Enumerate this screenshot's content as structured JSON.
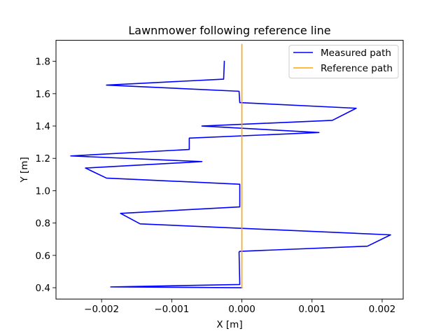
{
  "chart_data": {
    "type": "line",
    "title": "Lawnmower following reference line",
    "xlabel": "X [m]",
    "ylabel": "Y [m]",
    "xlim": [
      -0.00265,
      0.0023
    ],
    "ylim": [
      0.33,
      1.93
    ],
    "x_ticks": [
      {
        "value": -0.002,
        "label": "−0.002"
      },
      {
        "value": -0.001,
        "label": "−0.001"
      },
      {
        "value": 0.0,
        "label": "0.000"
      },
      {
        "value": 0.001,
        "label": "0.001"
      },
      {
        "value": 0.002,
        "label": "0.002"
      }
    ],
    "y_ticks": [
      {
        "value": 0.4,
        "label": "0.4"
      },
      {
        "value": 0.6,
        "label": "0.6"
      },
      {
        "value": 0.8,
        "label": "0.8"
      },
      {
        "value": 1.0,
        "label": "1.0"
      },
      {
        "value": 1.2,
        "label": "1.2"
      },
      {
        "value": 1.4,
        "label": "1.4"
      },
      {
        "value": 1.6,
        "label": "1.6"
      },
      {
        "value": 1.8,
        "label": "1.8"
      }
    ],
    "grid": false,
    "legend_position": "top-right",
    "series": [
      {
        "name": "Measured path",
        "color": "#0000ff",
        "x": [
          0.0,
          -0.00187,
          -3e-05,
          -4e-05,
          -3e-05,
          0.00179,
          0.00212,
          -0.00145,
          -0.00173,
          -3e-05,
          -3e-05,
          -0.00193,
          -0.00223,
          -0.00057,
          -0.00244,
          -0.00075,
          -0.00075,
          0.0011,
          -0.00057,
          0.00129,
          0.00163,
          -3e-05,
          -4e-05,
          -0.00193,
          -0.00026,
          -0.00025
        ],
        "y": [
          0.4,
          0.405,
          0.42,
          0.62,
          0.625,
          0.657,
          0.727,
          0.795,
          0.86,
          0.9,
          1.04,
          1.078,
          1.14,
          1.18,
          1.215,
          1.255,
          1.325,
          1.36,
          1.4,
          1.435,
          1.51,
          1.545,
          1.615,
          1.653,
          1.69,
          1.8
        ]
      },
      {
        "name": "Reference path",
        "color": "#ffa500",
        "x": [
          0.0,
          0.0
        ],
        "y": [
          0.4,
          1.905
        ]
      }
    ]
  }
}
